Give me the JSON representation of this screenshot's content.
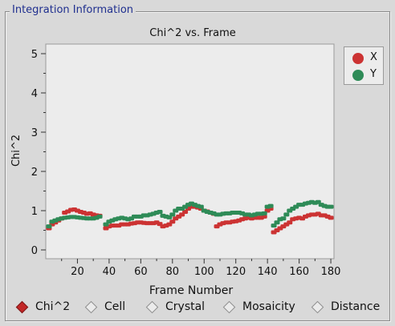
{
  "panel": {
    "title": "Integration Information"
  },
  "chart_data": {
    "type": "scatter",
    "title": "Chi^2 vs. Frame",
    "xlabel": "Frame Number",
    "ylabel": "Chi^2",
    "xlim": [
      0,
      182
    ],
    "ylim": [
      0,
      5
    ],
    "xticks": [
      20,
      40,
      60,
      80,
      100,
      120,
      140,
      160,
      180
    ],
    "yticks": [
      0,
      1,
      2,
      3,
      4,
      5
    ],
    "grid": false,
    "legend_position": "right",
    "series": [
      {
        "name": "X",
        "color": "#cc3333",
        "x": [
          2,
          4,
          6,
          8,
          10,
          12,
          14,
          16,
          18,
          20,
          22,
          24,
          26,
          28,
          30,
          32,
          34,
          38,
          40,
          42,
          44,
          46,
          48,
          50,
          52,
          54,
          56,
          58,
          60,
          62,
          64,
          66,
          68,
          70,
          72,
          74,
          76,
          78,
          80,
          82,
          84,
          86,
          88,
          90,
          92,
          94,
          96,
          98,
          100,
          102,
          104,
          106,
          108,
          110,
          112,
          114,
          116,
          118,
          120,
          122,
          124,
          126,
          128,
          130,
          132,
          134,
          136,
          138,
          140,
          142,
          144,
          146,
          148,
          150,
          152,
          154,
          156,
          158,
          160,
          162,
          164,
          166,
          168,
          170,
          172,
          174,
          176,
          178,
          180
        ],
        "y": [
          0.55,
          0.65,
          0.7,
          0.75,
          0.8,
          0.95,
          0.98,
          1.02,
          1.03,
          1.0,
          0.97,
          0.95,
          0.92,
          0.93,
          0.9,
          0.88,
          0.87,
          0.55,
          0.6,
          0.62,
          0.62,
          0.62,
          0.65,
          0.65,
          0.65,
          0.67,
          0.68,
          0.7,
          0.7,
          0.69,
          0.68,
          0.68,
          0.68,
          0.7,
          0.66,
          0.6,
          0.62,
          0.65,
          0.72,
          0.8,
          0.85,
          0.9,
          0.97,
          1.05,
          1.1,
          1.1,
          1.08,
          1.05,
          1.0,
          0.98,
          0.95,
          0.92,
          0.6,
          0.65,
          0.68,
          0.7,
          0.7,
          0.72,
          0.73,
          0.75,
          0.78,
          0.8,
          0.82,
          0.8,
          0.82,
          0.82,
          0.82,
          0.85,
          1.0,
          1.05,
          0.45,
          0.5,
          0.55,
          0.6,
          0.65,
          0.7,
          0.78,
          0.8,
          0.82,
          0.8,
          0.85,
          0.88,
          0.9,
          0.9,
          0.92,
          0.88,
          0.88,
          0.85,
          0.82
        ]
      },
      {
        "name": "Y",
        "color": "#2e8b57",
        "x": [
          2,
          4,
          6,
          8,
          10,
          12,
          14,
          16,
          18,
          20,
          22,
          24,
          26,
          28,
          30,
          32,
          34,
          38,
          40,
          42,
          44,
          46,
          48,
          50,
          52,
          54,
          56,
          58,
          60,
          62,
          64,
          66,
          68,
          70,
          72,
          74,
          76,
          78,
          80,
          82,
          84,
          86,
          88,
          90,
          92,
          94,
          96,
          98,
          100,
          102,
          104,
          106,
          108,
          110,
          112,
          114,
          116,
          118,
          120,
          122,
          124,
          126,
          128,
          130,
          132,
          134,
          136,
          138,
          140,
          142,
          144,
          146,
          148,
          150,
          152,
          154,
          156,
          158,
          160,
          162,
          164,
          166,
          168,
          170,
          172,
          174,
          176,
          178,
          180
        ],
        "y": [
          0.6,
          0.72,
          0.75,
          0.78,
          0.8,
          0.82,
          0.83,
          0.84,
          0.84,
          0.83,
          0.82,
          0.81,
          0.8,
          0.8,
          0.8,
          0.82,
          0.85,
          0.65,
          0.72,
          0.75,
          0.78,
          0.8,
          0.82,
          0.8,
          0.78,
          0.8,
          0.85,
          0.85,
          0.85,
          0.88,
          0.88,
          0.9,
          0.92,
          0.95,
          0.97,
          0.87,
          0.85,
          0.83,
          0.9,
          1.0,
          1.05,
          1.05,
          1.1,
          1.15,
          1.18,
          1.15,
          1.12,
          1.1,
          1.0,
          0.97,
          0.95,
          0.93,
          0.9,
          0.9,
          0.92,
          0.93,
          0.93,
          0.95,
          0.95,
          0.95,
          0.93,
          0.9,
          0.9,
          0.88,
          0.9,
          0.92,
          0.92,
          0.93,
          1.1,
          1.12,
          0.62,
          0.7,
          0.78,
          0.8,
          0.9,
          1.0,
          1.05,
          1.1,
          1.15,
          1.15,
          1.18,
          1.2,
          1.22,
          1.2,
          1.22,
          1.15,
          1.12,
          1.1,
          1.1
        ]
      }
    ]
  },
  "options": [
    {
      "label": "Chi^2",
      "selected": true
    },
    {
      "label": "Cell",
      "selected": false
    },
    {
      "label": "Crystal",
      "selected": false
    },
    {
      "label": "Mosaicity",
      "selected": false
    },
    {
      "label": "Distance",
      "selected": false
    }
  ]
}
